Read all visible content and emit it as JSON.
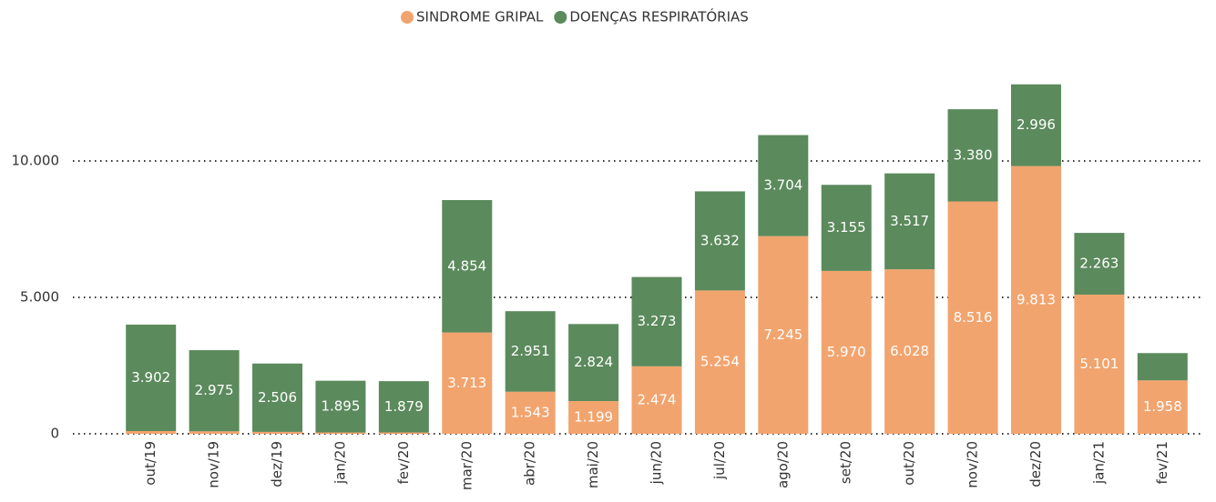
{
  "chart_data": {
    "type": "stacked-bar",
    "categories": [
      "out/19",
      "nov/19",
      "dez/19",
      "jan/20",
      "fev/20",
      "mar/20",
      "abr/20",
      "mai/20",
      "jun/20",
      "jul/20",
      "ago/20",
      "set/20",
      "out/20",
      "nov/20",
      "dez/20",
      "jan/21",
      "fev/21"
    ],
    "series": [
      {
        "name": "SINDROME GRIPAL",
        "color": "#f2a46e",
        "values": [
          100,
          90,
          70,
          50,
          50,
          3713,
          1543,
          1199,
          2474,
          5254,
          7245,
          5970,
          6028,
          8516,
          9813,
          5101,
          1958
        ],
        "value_labels": [
          null,
          null,
          null,
          null,
          null,
          "3.713",
          "1.543",
          "1.199",
          "2.474",
          "5.254",
          "7.245",
          "5.970",
          "6.028",
          "8.516",
          "9.813",
          "5.101",
          "1.958"
        ]
      },
      {
        "name": "DOENÇAS RESPIRATÓRIAS",
        "color": "#5b8a5c",
        "values": [
          3902,
          2975,
          2506,
          1895,
          1879,
          4854,
          2951,
          2824,
          3273,
          3632,
          3704,
          3155,
          3517,
          3380,
          2996,
          2263,
          1000
        ],
        "value_labels": [
          "3.902",
          "2.975",
          "2.506",
          "1.895",
          "1.879",
          "4.854",
          "2.951",
          "2.824",
          "3.273",
          "3.632",
          "3.704",
          "3.155",
          "3.517",
          "3.380",
          "2.996",
          "2.263",
          null
        ]
      }
    ],
    "ylim": [
      0,
      13000
    ],
    "yticks": [
      0,
      {
        "value": 5000,
        "label": "5.000"
      },
      {
        "value": 10000,
        "label": "10.000"
      }
    ],
    "grid": true,
    "legend": "top"
  }
}
